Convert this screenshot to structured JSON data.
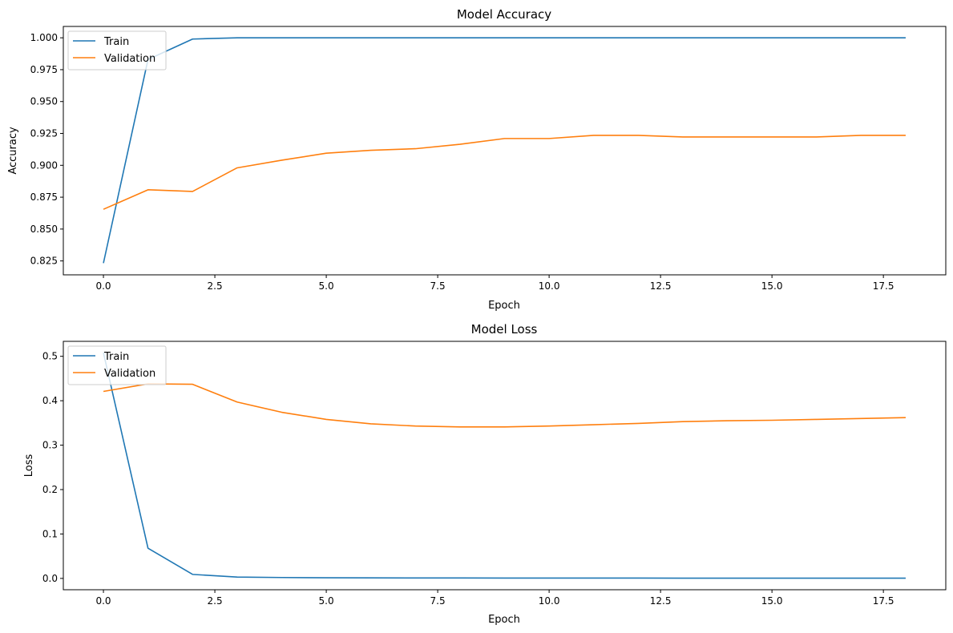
{
  "colors": {
    "train": "#1f77b4",
    "validation": "#ff7f0e",
    "axis": "#000000",
    "legend_border": "#cccccc"
  },
  "chart_data": [
    {
      "type": "line",
      "title": "Model Accuracy",
      "xlabel": "Epoch",
      "ylabel": "Accuracy",
      "xlim": [
        -0.9,
        18.9
      ],
      "ylim": [
        0.8141,
        1.0089
      ],
      "xticks": [
        0,
        2.5,
        5,
        7.5,
        10,
        12.5,
        15,
        17.5
      ],
      "xtick_labels": [
        "0.0",
        "2.5",
        "5.0",
        "7.5",
        "10.0",
        "12.5",
        "15.0",
        "17.5"
      ],
      "yticks": [
        0.825,
        0.85,
        0.875,
        0.9,
        0.925,
        0.95,
        0.975,
        1.0
      ],
      "ytick_labels": [
        "0.825",
        "0.850",
        "0.875",
        "0.900",
        "0.925",
        "0.950",
        "0.975",
        "1.000"
      ],
      "legend_position": "upper left",
      "x": [
        0,
        1,
        2,
        3,
        4,
        5,
        6,
        7,
        8,
        9,
        10,
        11,
        12,
        13,
        14,
        15,
        16,
        17,
        18
      ],
      "series": [
        {
          "name": "Train",
          "color_key": "train",
          "values": [
            0.8233,
            0.983,
            0.999,
            1.0,
            1.0,
            1.0,
            1.0,
            1.0,
            1.0,
            1.0,
            1.0,
            1.0,
            1.0,
            1.0,
            1.0,
            1.0,
            1.0,
            1.0,
            1.0
          ]
        },
        {
          "name": "Validation",
          "color_key": "validation",
          "values": [
            0.8655,
            0.8808,
            0.8795,
            0.898,
            0.904,
            0.9095,
            0.9118,
            0.913,
            0.9165,
            0.921,
            0.921,
            0.9235,
            0.9235,
            0.9222,
            0.9222,
            0.9222,
            0.9222,
            0.9235,
            0.9235
          ]
        }
      ]
    },
    {
      "type": "line",
      "title": "Model Loss",
      "xlabel": "Epoch",
      "ylabel": "Loss",
      "xlim": [
        -0.9,
        18.9
      ],
      "ylim": [
        -0.0255,
        0.5337
      ],
      "xticks": [
        0,
        2.5,
        5,
        7.5,
        10,
        12.5,
        15,
        17.5
      ],
      "xtick_labels": [
        "0.0",
        "2.5",
        "5.0",
        "7.5",
        "10.0",
        "12.5",
        "15.0",
        "17.5"
      ],
      "yticks": [
        0.0,
        0.1,
        0.2,
        0.3,
        0.4,
        0.5
      ],
      "ytick_labels": [
        "0.0",
        "0.1",
        "0.2",
        "0.3",
        "0.4",
        "0.5"
      ],
      "legend_position": "upper left",
      "x": [
        0,
        1,
        2,
        3,
        4,
        5,
        6,
        7,
        8,
        9,
        10,
        11,
        12,
        13,
        14,
        15,
        16,
        17,
        18
      ],
      "series": [
        {
          "name": "Train",
          "color_key": "train",
          "values": [
            0.508,
            0.068,
            0.009,
            0.003,
            0.002,
            0.0015,
            0.0012,
            0.001,
            0.0009,
            0.0008,
            0.0008,
            0.0007,
            0.0007,
            0.0006,
            0.0006,
            0.0006,
            0.0005,
            0.0005,
            0.0005
          ]
        },
        {
          "name": "Validation",
          "color_key": "validation",
          "values": [
            0.421,
            0.438,
            0.437,
            0.397,
            0.374,
            0.358,
            0.348,
            0.343,
            0.341,
            0.341,
            0.343,
            0.346,
            0.349,
            0.353,
            0.355,
            0.356,
            0.358,
            0.36,
            0.362
          ]
        }
      ]
    }
  ]
}
